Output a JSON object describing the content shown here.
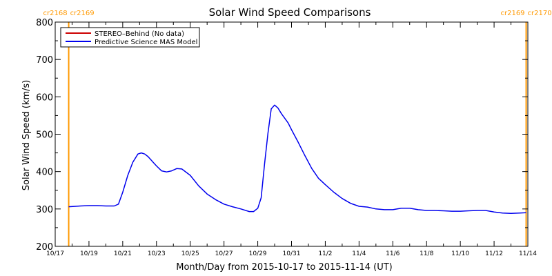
{
  "chart_data": {
    "type": "line",
    "title": "Solar Wind Speed Comparisons",
    "xlabel": "Month/Day from 2015-10-17 to 2015-11-14 (UT)",
    "ylabel": "Solar Wind Speed (km/s)",
    "xlim": [
      0,
      28
    ],
    "ylim": [
      200,
      800
    ],
    "grid": false,
    "legend_position": "top-left",
    "x_ticks": [
      {
        "x": 0,
        "label": "10/17"
      },
      {
        "x": 2,
        "label": "10/19"
      },
      {
        "x": 4,
        "label": "10/21"
      },
      {
        "x": 6,
        "label": "10/23"
      },
      {
        "x": 8,
        "label": "10/25"
      },
      {
        "x": 10,
        "label": "10/27"
      },
      {
        "x": 12,
        "label": "10/29"
      },
      {
        "x": 14,
        "label": "10/31"
      },
      {
        "x": 16,
        "label": "11/2"
      },
      {
        "x": 18,
        "label": "11/4"
      },
      {
        "x": 20,
        "label": "11/6"
      },
      {
        "x": 22,
        "label": "11/8"
      },
      {
        "x": 24,
        "label": "11/10"
      },
      {
        "x": 26,
        "label": "11/12"
      },
      {
        "x": 28,
        "label": "11/14"
      }
    ],
    "y_ticks": [
      200,
      300,
      400,
      500,
      600,
      700,
      800
    ],
    "rotation_markers": [
      {
        "x": 0.8,
        "label_left": "cr2168",
        "label_right": "cr2169",
        "color": "#ff9900"
      },
      {
        "x": 27.9,
        "label_left": "cr2169",
        "label_right": "cr2170",
        "color": "#ff9900"
      }
    ],
    "series": [
      {
        "name": "STEREO–Behind (No data)",
        "color": "#cc0000",
        "values": []
      },
      {
        "name": "Predictive Science MAS Model",
        "color": "#0000ee",
        "x": [
          0.8,
          1.2,
          1.5,
          2.0,
          2.5,
          3.0,
          3.5,
          3.75,
          4.0,
          4.3,
          4.6,
          4.9,
          5.1,
          5.3,
          5.5,
          5.8,
          6.0,
          6.3,
          6.6,
          6.9,
          7.2,
          7.5,
          8.0,
          8.5,
          9.0,
          9.5,
          10.0,
          10.5,
          11.0,
          11.5,
          11.75,
          12.0,
          12.2,
          12.4,
          12.6,
          12.8,
          13.0,
          13.2,
          13.4,
          13.8,
          14.0,
          14.4,
          14.8,
          15.2,
          15.6,
          16.0,
          16.5,
          17.0,
          17.5,
          18.0,
          18.5,
          19.0,
          19.5,
          20.0,
          20.5,
          21.0,
          21.5,
          22.0,
          22.5,
          23.0,
          23.5,
          24.0,
          24.5,
          25.0,
          25.5,
          26.0,
          26.5,
          27.0,
          27.5,
          27.9
        ],
        "values": [
          306,
          307,
          308,
          309,
          309,
          308,
          308,
          313,
          345,
          390,
          425,
          447,
          450,
          447,
          440,
          425,
          415,
          402,
          399,
          402,
          408,
          407,
          390,
          362,
          340,
          325,
          313,
          306,
          300,
          293,
          293,
          302,
          330,
          420,
          502,
          568,
          578,
          570,
          555,
          530,
          512,
          478,
          442,
          408,
          382,
          365,
          345,
          328,
          315,
          307,
          305,
          300,
          298,
          298,
          302,
          302,
          298,
          296,
          296,
          295,
          294,
          294,
          295,
          296,
          296,
          292,
          289,
          288,
          289,
          290
        ]
      }
    ]
  }
}
